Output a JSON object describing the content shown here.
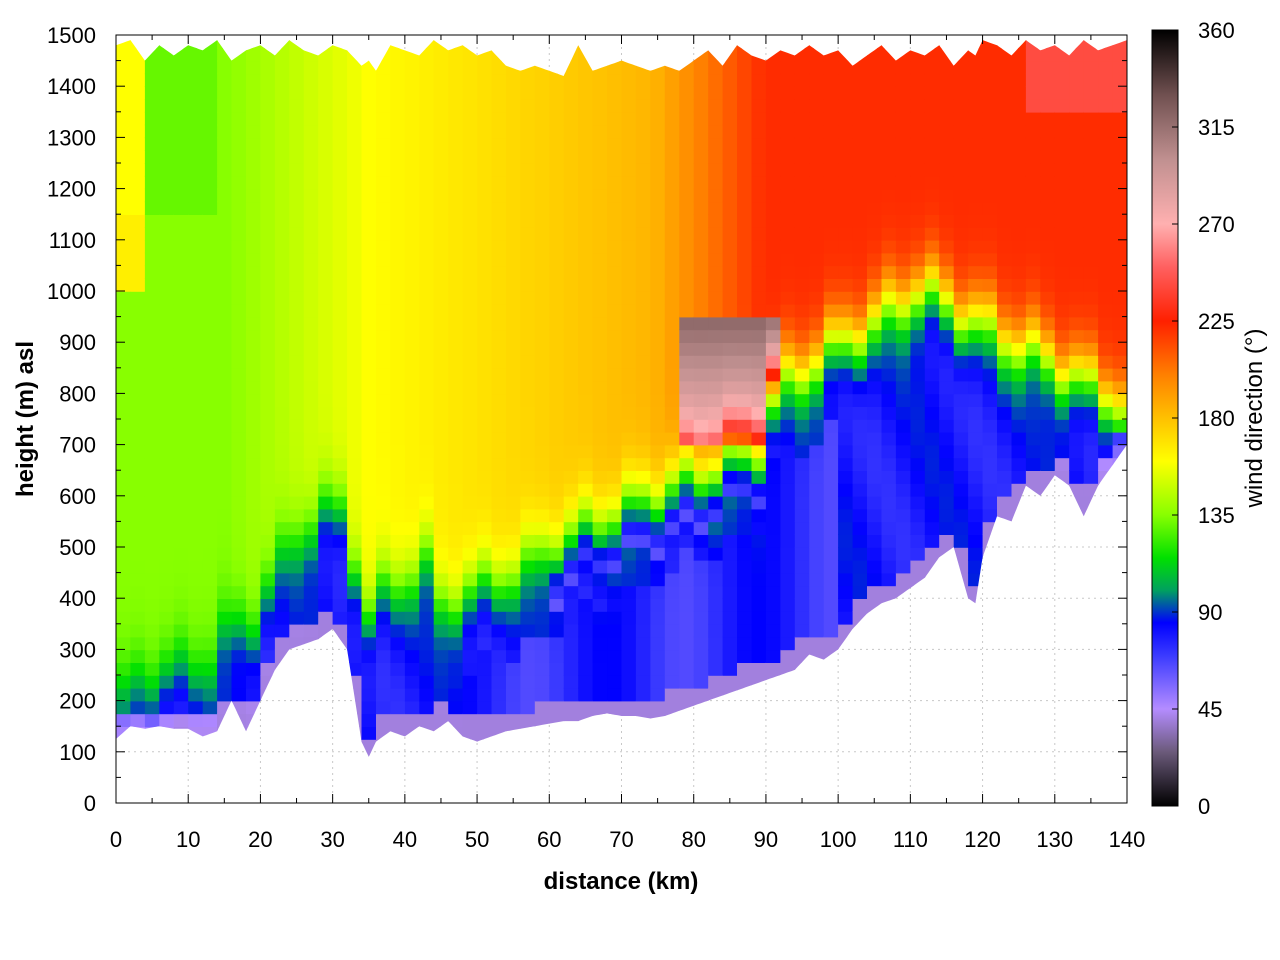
{
  "chart_data": {
    "type": "heatmap",
    "title": "",
    "xlabel": "distance (km)",
    "ylabel": "height (m) asl",
    "colorbar_label": "wind direction (°)",
    "xlim": [
      0,
      140
    ],
    "ylim": [
      0,
      1500
    ],
    "clim": [
      0,
      360
    ],
    "x_ticks": [
      "0",
      "10",
      "20",
      "30",
      "40",
      "50",
      "60",
      "70",
      "80",
      "90",
      "100",
      "110",
      "120",
      "130",
      "140"
    ],
    "y_ticks": [
      "0",
      "100",
      "200",
      "300",
      "400",
      "500",
      "600",
      "700",
      "800",
      "900",
      "1000",
      "1100",
      "1200",
      "1300",
      "1400",
      "1500"
    ],
    "colorbar_ticks": [
      "0",
      "45",
      "90",
      "135",
      "180",
      "225",
      "270",
      "315",
      "360"
    ],
    "grid": true,
    "palette": [
      {
        "v": 0,
        "c": "#000000"
      },
      {
        "v": 25,
        "c": "#6b5a7a"
      },
      {
        "v": 45,
        "c": "#b48cff"
      },
      {
        "v": 70,
        "c": "#3a3aff"
      },
      {
        "v": 85,
        "c": "#0000ff"
      },
      {
        "v": 100,
        "c": "#00a060"
      },
      {
        "v": 115,
        "c": "#00e000"
      },
      {
        "v": 135,
        "c": "#88ff00"
      },
      {
        "v": 160,
        "c": "#ffff00"
      },
      {
        "v": 180,
        "c": "#ffc000"
      },
      {
        "v": 200,
        "c": "#ff8000"
      },
      {
        "v": 225,
        "c": "#ff2000"
      },
      {
        "v": 250,
        "c": "#ff6060"
      },
      {
        "v": 270,
        "c": "#ffb0b0"
      },
      {
        "v": 300,
        "c": "#c09090"
      },
      {
        "v": 330,
        "c": "#705050"
      },
      {
        "v": 360,
        "c": "#000000"
      }
    ],
    "terrain_km": [
      0,
      2,
      4,
      6,
      8,
      10,
      12,
      14,
      16,
      18,
      20,
      22,
      24,
      26,
      28,
      30,
      32,
      34,
      35,
      36,
      38,
      40,
      42,
      44,
      46,
      48,
      50,
      52,
      54,
      56,
      58,
      60,
      62,
      64,
      66,
      68,
      70,
      72,
      74,
      76,
      78,
      80,
      82,
      84,
      86,
      88,
      90,
      92,
      94,
      96,
      98,
      100,
      102,
      104,
      106,
      108,
      110,
      112,
      114,
      116,
      118,
      119,
      120,
      122,
      124,
      126,
      128,
      130,
      132,
      134,
      136,
      138,
      140
    ],
    "terrain_m": [
      125,
      150,
      145,
      150,
      145,
      145,
      130,
      140,
      200,
      140,
      200,
      260,
      300,
      310,
      320,
      340,
      300,
      120,
      90,
      120,
      140,
      130,
      150,
      140,
      160,
      130,
      120,
      130,
      140,
      145,
      150,
      155,
      160,
      160,
      170,
      175,
      170,
      170,
      165,
      170,
      180,
      190,
      200,
      210,
      220,
      230,
      240,
      250,
      260,
      290,
      280,
      300,
      340,
      370,
      390,
      400,
      420,
      440,
      480,
      500,
      400,
      390,
      480,
      560,
      550,
      620,
      600,
      640,
      620,
      560,
      620,
      660,
      700
    ],
    "top_m": [
      1480,
      1490,
      1450,
      1480,
      1460,
      1480,
      1470,
      1490,
      1450,
      1470,
      1480,
      1460,
      1490,
      1470,
      1460,
      1480,
      1470,
      1440,
      1450,
      1430,
      1480,
      1470,
      1460,
      1490,
      1470,
      1480,
      1460,
      1470,
      1440,
      1430,
      1440,
      1430,
      1420,
      1480,
      1430,
      1440,
      1450,
      1440,
      1430,
      1440,
      1430,
      1450,
      1470,
      1440,
      1480,
      1460,
      1450,
      1470,
      1460,
      1480,
      1460,
      1470,
      1440,
      1460,
      1480,
      1450,
      1470,
      1460,
      1480,
      1440,
      1470,
      1460,
      1490,
      1480,
      1460,
      1490,
      1470,
      1480,
      1460,
      1490,
      1470,
      1480,
      1490
    ]
  }
}
